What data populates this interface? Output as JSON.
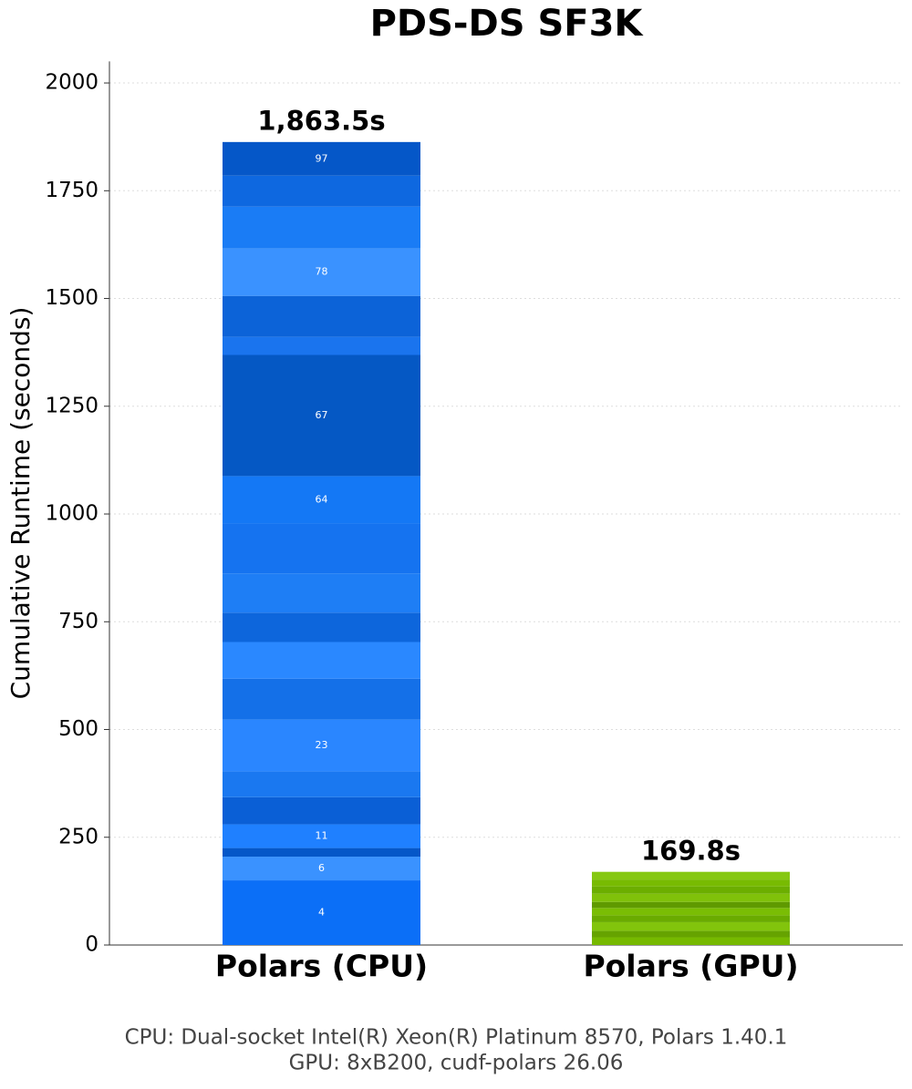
{
  "chart_data": {
    "type": "stacked_bar",
    "title": "PDS-DS SF3K",
    "ylabel": "Cumulative Runtime (seconds)",
    "footnote": [
      "CPU: Dual-socket Intel(R) Xeon(R) Platinum 8570, Polars 1.40.1",
      "GPU: 8xB200, cudf-polars 26.06"
    ],
    "categories": [
      "Polars (CPU)",
      "Polars (GPU)"
    ],
    "totals": [
      1863.5,
      169.8
    ],
    "total_labels": [
      "1,863.5s",
      "169.8s"
    ],
    "ylim": [
      0,
      2050
    ],
    "yticks": [
      0,
      250,
      500,
      750,
      1000,
      1250,
      1500,
      1750,
      2000
    ],
    "grid": true,
    "stacks": [
      {
        "values": [
          150,
          55,
          20,
          55,
          63,
          60,
          120,
          95,
          85,
          68,
          91,
          116,
          110,
          281,
          42,
          95,
          110,
          97,
          72,
          78
        ],
        "labels": [
          "4",
          "6",
          null,
          "11",
          null,
          null,
          "23",
          null,
          null,
          null,
          null,
          null,
          "64",
          "67",
          null,
          null,
          "78",
          null,
          null,
          "97"
        ],
        "colors": [
          "#0b6ff7",
          "#3a92ff",
          "#0557c8",
          "#1f80ff",
          "#0a5fd6",
          "#1a78f0",
          "#2a86ff",
          "#1470e8",
          "#2a88ff",
          "#0d66dc",
          "#1e7ef5",
          "#1573f0",
          "#1478f5",
          "#0558c4",
          "#1a74ee",
          "#0c63d8",
          "#3a92ff",
          "#1a7cf5",
          "#0e68e0",
          "#0557c8"
        ]
      },
      {
        "values": [
          18,
          15,
          20,
          16,
          17,
          14,
          19,
          17,
          16,
          17.8
        ],
        "labels": [
          null,
          null,
          null,
          null,
          null,
          null,
          null,
          null,
          null,
          null
        ],
        "colors": [
          "#76b900",
          "#66a300",
          "#82c40c",
          "#6aab00",
          "#7abd04",
          "#5f9a00",
          "#80c10a",
          "#6cae00",
          "#78bb02",
          "#86c812"
        ]
      }
    ]
  }
}
